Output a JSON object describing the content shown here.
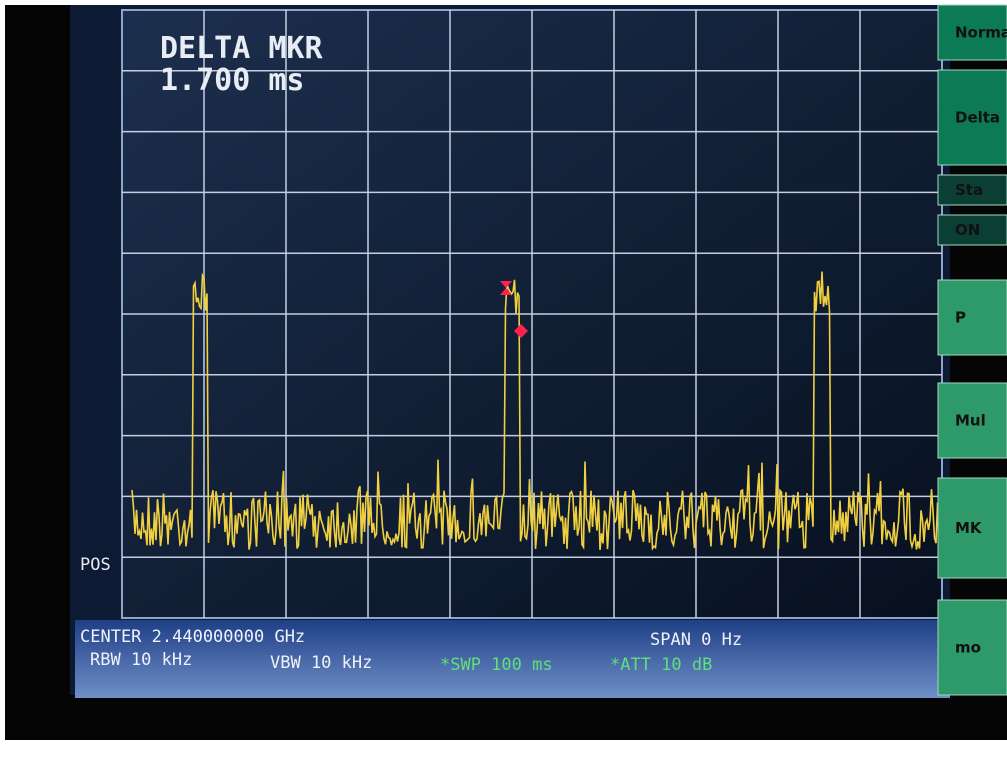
{
  "screen": {
    "marker_readout": {
      "label": "DELTA MKR",
      "value": "1.700 ms"
    },
    "detector": "POS",
    "status": {
      "center": "CENTER 2.440000000 GHz",
      "span": "SPAN 0 Hz",
      "rbw": "RBW 10 kHz",
      "vbw": "VBW 10 kHz",
      "sweep": "*SWP 100 ms",
      "attenuation": "*ATT 10 dB"
    },
    "softkeys": [
      "Norma",
      "Delta",
      "Sta",
      "ON",
      "P",
      "Mul",
      "MK",
      "mo"
    ]
  }
}
